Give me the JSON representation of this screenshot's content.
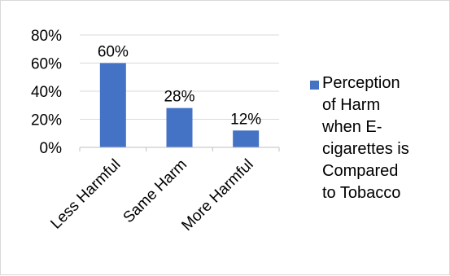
{
  "chart_data": {
    "type": "bar",
    "title": "",
    "xlabel": "",
    "ylabel": "",
    "categories": [
      "Less Harmful",
      "Same Harm",
      "More Harmful"
    ],
    "series": [
      {
        "name": "Perception of Harm when E-cigarettes is Compared to Tobacco",
        "values": [
          60,
          28,
          12
        ],
        "data_labels": [
          "60%",
          "28%",
          "12%"
        ],
        "color": "#4472c4"
      }
    ],
    "ylim": [
      0,
      80
    ],
    "yticks": [
      0,
      20,
      40,
      60,
      80
    ],
    "ytick_labels": [
      "0%",
      "20%",
      "40%",
      "60%",
      "80%"
    ],
    "grid": true,
    "legend_position": "right"
  },
  "legend": {
    "lines": [
      "Perception",
      "of Harm",
      "when E-",
      "cigarettes is",
      "Compared",
      "to Tobacco"
    ]
  },
  "colors": {
    "bar": "#4472c4",
    "grid": "#d9d9d9",
    "axis": "#bfbfbf"
  }
}
